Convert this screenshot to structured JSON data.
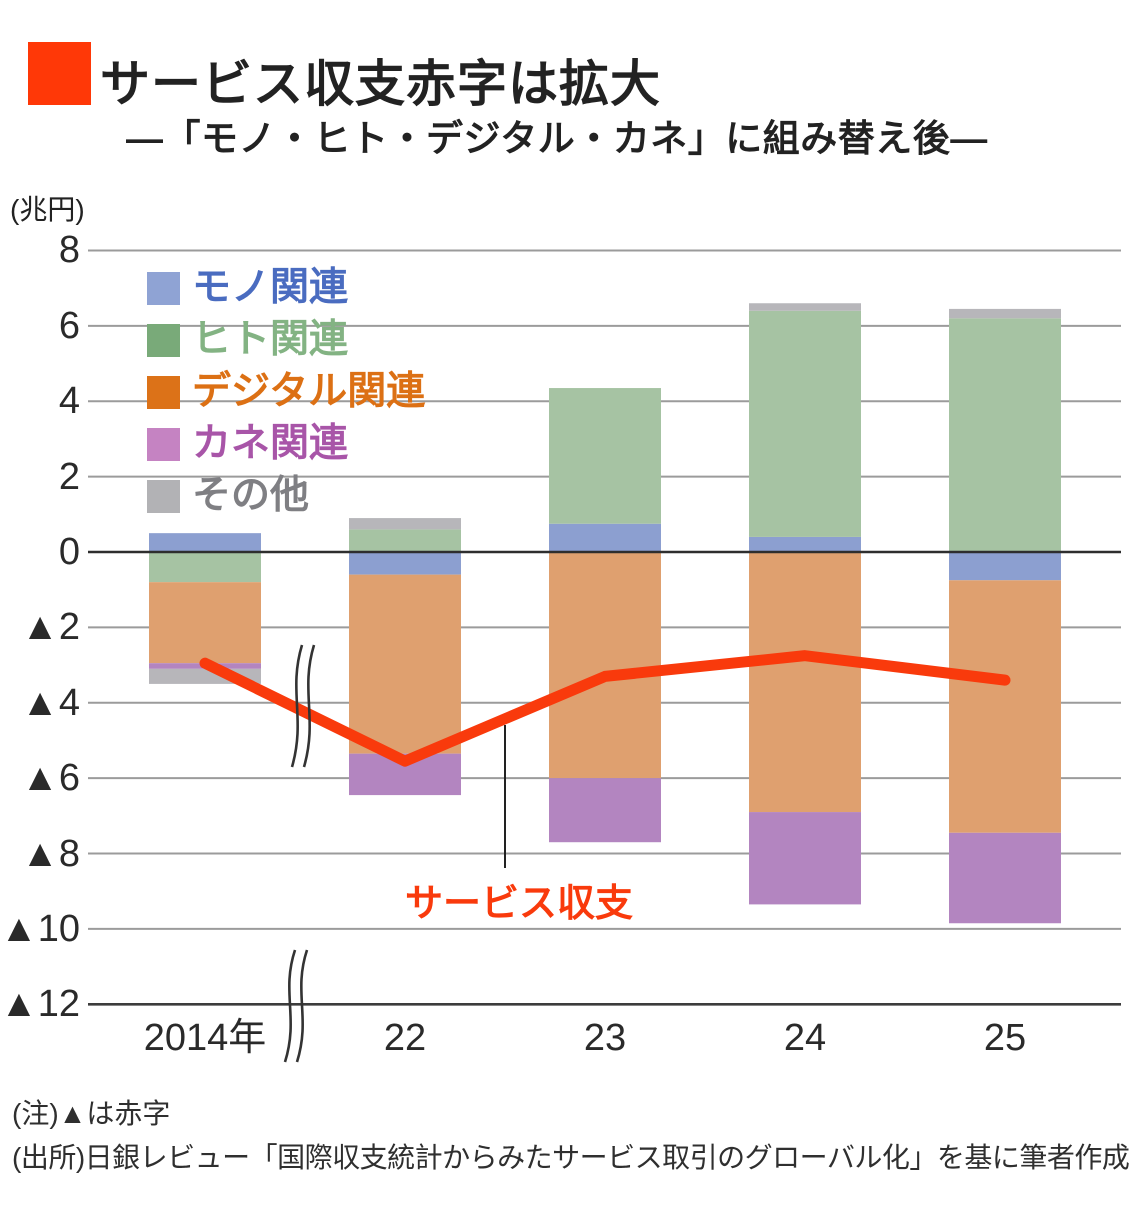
{
  "header": {
    "bullet_color": "#ff3807",
    "title": "サービス収支赤字は拡大",
    "subtitle": "—「モノ・ヒト・デジタル・カネ」に組み替え後—"
  },
  "axis_unit_label": "(兆円)",
  "legend": {
    "items": [
      {
        "label": "モノ関連",
        "square_color": "#8fa3d4",
        "text_color": "#4a6cc0"
      },
      {
        "label": "ヒト関連",
        "square_color": "#79aa79",
        "text_color": "#83b383"
      },
      {
        "label": "デジタル関連",
        "square_color": "#dc7218",
        "text_color": "#dc7014"
      },
      {
        "label": "カネ関連",
        "square_color": "#c583c2",
        "text_color": "#a855a8"
      },
      {
        "label": "その他",
        "square_color": "#b2b2b5",
        "text_color": "#7f7f83"
      }
    ]
  },
  "annotations": {
    "line_label": "サービス収支",
    "line_label_color": "#f93a0c"
  },
  "notes": {
    "note1": "(注)▲は赤字",
    "note2": "(出所)日銀レビュー「国際収支統計からみたサービス取引のグローバル化」を基に筆者作成"
  },
  "chart_data": {
    "type": "stacked-bar-with-line",
    "title": "サービス収支赤字は拡大 —「モノ・ヒト・デジタル・カネ」に組み替え後—",
    "unit": "兆円",
    "categories": [
      "2014年",
      "22",
      "23",
      "24",
      "25"
    ],
    "series": [
      {
        "name": "モノ関連",
        "bar_color": "#8c9fd0",
        "values": [
          0.5,
          -0.6,
          0.75,
          0.4,
          -0.75
        ]
      },
      {
        "name": "ヒト関連",
        "bar_color": "#a6c3a3",
        "values": [
          -0.8,
          0.6,
          3.6,
          6.0,
          6.2
        ]
      },
      {
        "name": "デジタル関連",
        "bar_color": "#dfa06f",
        "values": [
          -2.15,
          -4.75,
          -6.0,
          -6.9,
          -6.7
        ]
      },
      {
        "name": "カネ関連",
        "bar_color": "#b385c0",
        "values": [
          -0.15,
          -1.1,
          -1.7,
          -2.45,
          -2.4
        ]
      },
      {
        "name": "その他",
        "bar_color": "#b7b6ba",
        "values": [
          -0.4,
          0.3,
          0.0,
          0.2,
          0.25
        ]
      }
    ],
    "line_series": {
      "name": "サービス収支",
      "color": "#f93a0c",
      "values": [
        -2.95,
        -5.55,
        -3.3,
        -2.75,
        -3.4
      ]
    },
    "y_ticks": [
      "8",
      "6",
      "4",
      "2",
      "0",
      "▲2",
      "▲4",
      "▲6",
      "▲8",
      "▲10",
      "▲12"
    ],
    "y_tick_values": [
      8,
      6,
      4,
      2,
      0,
      -2,
      -4,
      -6,
      -8,
      -10,
      -12
    ],
    "ylim": [
      -12,
      8
    ],
    "grid": true,
    "legend_position": "upper-left-inside",
    "axis_break_between": [
      "2014年",
      "22"
    ],
    "negative_notation": "▲ = deficit (red figures)"
  }
}
